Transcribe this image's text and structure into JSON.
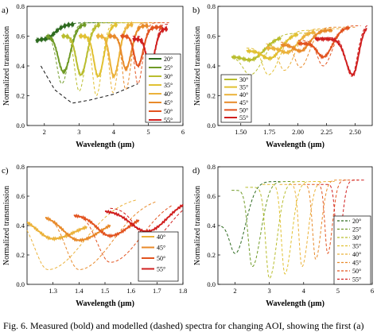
{
  "caption": "Fig. 6. Measured (bold) and modelled (dashed) spectra for changing AOI, showing the first (a)",
  "colors": {
    "20": "#2d6a1f",
    "25": "#6f9a26",
    "30": "#b9bd2e",
    "35": "#e1c132",
    "40": "#ebb23a",
    "45": "#e88a2a",
    "50": "#e2531f",
    "55": "#d01f1f"
  },
  "chart_data": [
    {
      "id": "a",
      "type": "line",
      "panel_label": "a)",
      "xlabel": "Wavelength (µm)",
      "ylabel": "Normalized transmission",
      "xlim": [
        1.5,
        6
      ],
      "ylim": [
        0,
        0.8
      ],
      "xticks": [
        2,
        3,
        4,
        5,
        6
      ],
      "xtick_labels": [
        "2",
        "3",
        "4",
        "5",
        "6"
      ],
      "yticks": [
        0.0,
        0.2,
        0.4,
        0.6,
        0.8
      ],
      "ytick_labels": [
        "0.0",
        "0.2",
        "0.4",
        "0.6",
        "0.8"
      ],
      "legend": {
        "placement": "right",
        "entries": [
          "20°",
          "25°",
          "30°",
          "35°",
          "40°",
          "45°",
          "50°",
          "55°"
        ],
        "style": "solid"
      },
      "envelope": [
        [
          1.9,
          0.4
        ],
        [
          2.3,
          0.24
        ],
        [
          2.8,
          0.15
        ],
        [
          3.3,
          0.17
        ],
        [
          4.0,
          0.21
        ],
        [
          4.7,
          0.28
        ]
      ],
      "series": [
        {
          "name": "20°",
          "solid": {
            "x0": 1.75,
            "x1": 2.85,
            "xmin": 2.0,
            "ymin": 0.58,
            "left": 0.56,
            "right": 0.68,
            "lw": 0.2,
            "rw": 0.28
          },
          "dashed": {
            "x0": 1.75,
            "x1": 4.2,
            "xmin": 1.98,
            "ymin": 0.57,
            "left": 0.55,
            "right": 0.69,
            "lw": 0.18,
            "rw": 0.35
          }
        },
        {
          "name": "25°",
          "solid": {
            "x0": 2.05,
            "x1": 3.2,
            "xmin": 2.55,
            "ymin": 0.36,
            "left": 0.6,
            "right": 0.68,
            "lw": 0.15,
            "rw": 0.2
          },
          "dashed": {
            "x0": 2.05,
            "x1": 4.4,
            "xmin": 2.5,
            "ymin": 0.28,
            "left": 0.6,
            "right": 0.69,
            "lw": 0.14,
            "rw": 0.2
          }
        },
        {
          "name": "30°",
          "solid": {
            "x0": 2.5,
            "x1": 3.6,
            "xmin": 3.05,
            "ymin": 0.34,
            "left": 0.6,
            "right": 0.68,
            "lw": 0.13,
            "rw": 0.18
          },
          "dashed": {
            "x0": 2.5,
            "x1": 4.6,
            "xmin": 3.0,
            "ymin": 0.23,
            "left": 0.6,
            "right": 0.69,
            "lw": 0.12,
            "rw": 0.18
          }
        },
        {
          "name": "35°",
          "solid": {
            "x0": 3.0,
            "x1": 4.1,
            "xmin": 3.55,
            "ymin": 0.33,
            "left": 0.6,
            "right": 0.68,
            "lw": 0.12,
            "rw": 0.17
          },
          "dashed": {
            "x0": 3.0,
            "x1": 4.9,
            "xmin": 3.5,
            "ymin": 0.2,
            "left": 0.6,
            "right": 0.69,
            "lw": 0.11,
            "rw": 0.16
          }
        },
        {
          "name": "40°",
          "solid": {
            "x0": 3.5,
            "x1": 4.55,
            "xmin": 4.0,
            "ymin": 0.33,
            "left": 0.6,
            "right": 0.68,
            "lw": 0.11,
            "rw": 0.16
          },
          "dashed": {
            "x0": 3.5,
            "x1": 5.2,
            "xmin": 3.98,
            "ymin": 0.22,
            "left": 0.6,
            "right": 0.69,
            "lw": 0.1,
            "rw": 0.15
          }
        },
        {
          "name": "45°",
          "solid": {
            "x0": 3.85,
            "x1": 5.0,
            "xmin": 4.35,
            "ymin": 0.38,
            "left": 0.6,
            "right": 0.67,
            "lw": 0.11,
            "rw": 0.16
          },
          "dashed": {
            "x0": 3.85,
            "x1": 5.4,
            "xmin": 4.35,
            "ymin": 0.24,
            "left": 0.6,
            "right": 0.69,
            "lw": 0.1,
            "rw": 0.15
          }
        },
        {
          "name": "50°",
          "solid": {
            "x0": 4.2,
            "x1": 5.4,
            "xmin": 4.7,
            "ymin": 0.4,
            "left": 0.6,
            "right": 0.66,
            "lw": 0.11,
            "rw": 0.15
          },
          "dashed": {
            "x0": 4.2,
            "x1": 5.6,
            "xmin": 4.7,
            "ymin": 0.28,
            "left": 0.6,
            "right": 0.69,
            "lw": 0.1,
            "rw": 0.14
          }
        },
        {
          "name": "55°",
          "solid": {
            "x0": 4.55,
            "x1": 5.55,
            "xmin": 5.05,
            "ymin": 0.4,
            "left": 0.58,
            "right": 0.65,
            "lw": 0.11,
            "rw": 0.14
          },
          "dashed": {
            "x0": 4.55,
            "x1": 5.6,
            "xmin": 5.05,
            "ymin": 0.33,
            "left": 0.6,
            "right": 0.68,
            "lw": 0.1,
            "rw": 0.13
          }
        }
      ]
    },
    {
      "id": "b",
      "type": "line",
      "panel_label": "b)",
      "xlabel": "Wavelength (µm)",
      "ylabel": "Normalized transmission",
      "xlim": [
        1.3,
        2.65
      ],
      "ylim": [
        0,
        0.8
      ],
      "xticks": [
        1.5,
        1.75,
        2.0,
        2.25,
        2.5
      ],
      "xtick_labels": [
        "1.50",
        "1.75",
        "2.00",
        "2.25",
        "2.50"
      ],
      "yticks": [
        0.0,
        0.2,
        0.4,
        0.6,
        0.8
      ],
      "ytick_labels": [
        "0.0",
        "0.2",
        "0.4",
        "0.6",
        "0.8"
      ],
      "legend": {
        "placement": "left",
        "entries": [
          "30°",
          "35°",
          "40°",
          "45°",
          "50°",
          "55°"
        ],
        "style": "solid"
      },
      "series": [
        {
          "name": "30°",
          "solid": {
            "x0": 1.42,
            "x1": 1.85,
            "xmin": 1.58,
            "ymin": 0.44,
            "left": 0.46,
            "right": 0.6,
            "lw": 0.06,
            "rw": 0.12
          },
          "dashed": {
            "x0": 1.42,
            "x1": 2.1,
            "xmin": 1.58,
            "ymin": 0.34,
            "left": 0.46,
            "right": 0.62,
            "lw": 0.06,
            "rw": 0.12
          }
        },
        {
          "name": "35°",
          "solid": {
            "x0": 1.55,
            "x1": 2.0,
            "xmin": 1.75,
            "ymin": 0.45,
            "left": 0.5,
            "right": 0.62,
            "lw": 0.06,
            "rw": 0.1
          },
          "dashed": {
            "x0": 1.55,
            "x1": 2.25,
            "xmin": 1.74,
            "ymin": 0.34,
            "left": 0.52,
            "right": 0.64,
            "lw": 0.05,
            "rw": 0.1
          }
        },
        {
          "name": "40°",
          "solid": {
            "x0": 1.72,
            "x1": 2.15,
            "xmin": 1.9,
            "ymin": 0.49,
            "left": 0.52,
            "right": 0.63,
            "lw": 0.05,
            "rw": 0.09
          },
          "dashed": {
            "x0": 1.72,
            "x1": 2.4,
            "xmin": 1.88,
            "ymin": 0.37,
            "left": 0.55,
            "right": 0.65,
            "lw": 0.05,
            "rw": 0.09
          }
        },
        {
          "name": "45°",
          "solid": {
            "x0": 1.85,
            "x1": 2.3,
            "xmin": 2.02,
            "ymin": 0.5,
            "left": 0.54,
            "right": 0.64,
            "lw": 0.05,
            "rw": 0.08
          },
          "dashed": {
            "x0": 1.85,
            "x1": 2.5,
            "xmin": 2.02,
            "ymin": 0.39,
            "left": 0.56,
            "right": 0.66,
            "lw": 0.05,
            "rw": 0.08
          }
        },
        {
          "name": "50°",
          "solid": {
            "x0": 2.0,
            "x1": 2.45,
            "xmin": 2.22,
            "ymin": 0.46,
            "left": 0.55,
            "right": 0.66,
            "lw": 0.05,
            "rw": 0.08
          },
          "dashed": {
            "x0": 2.0,
            "x1": 2.55,
            "xmin": 2.22,
            "ymin": 0.4,
            "left": 0.57,
            "right": 0.67,
            "lw": 0.05,
            "rw": 0.08
          }
        },
        {
          "name": "55°",
          "solid": {
            "x0": 2.15,
            "x1": 2.6,
            "xmin": 2.48,
            "ymin": 0.34,
            "left": 0.58,
            "right": 0.67,
            "lw": 0.06,
            "rw": 0.05
          },
          "dashed": {
            "x0": 2.15,
            "x1": 2.62,
            "xmin": 2.47,
            "ymin": 0.33,
            "left": 0.59,
            "right": 0.68,
            "lw": 0.05,
            "rw": 0.05
          }
        }
      ]
    },
    {
      "id": "c",
      "type": "line",
      "panel_label": "c)",
      "xlabel": "Wavelength (µm)",
      "ylabel": "Normalized transmission",
      "xlim": [
        1.2,
        1.8
      ],
      "ylim": [
        0,
        0.8
      ],
      "xticks": [
        1.3,
        1.4,
        1.5,
        1.6,
        1.7,
        1.8
      ],
      "xtick_labels": [
        "1.3",
        "1.4",
        "1.5",
        "1.6",
        "1.7",
        "1.8"
      ],
      "yticks": [
        0.0,
        0.2,
        0.4,
        0.6,
        0.8
      ],
      "ytick_labels": [
        "0.0",
        "0.2",
        "0.4",
        "0.6",
        "0.8"
      ],
      "legend": {
        "placement": "bottom-right",
        "entries": [
          "40°",
          "45°",
          "50°",
          "55°"
        ],
        "style": "solid"
      },
      "series": [
        {
          "name": "40°",
          "solid": {
            "x0": 1.2,
            "x1": 1.43,
            "xmin": 1.3,
            "ymin": 0.31,
            "left": 0.46,
            "right": 0.42,
            "lw": 0.06,
            "rw": 0.08
          },
          "dashed": {
            "x0": 1.2,
            "x1": 1.62,
            "xmin": 1.28,
            "ymin": 0.1,
            "left": 0.47,
            "right": 0.6,
            "lw": 0.05,
            "rw": 0.14
          }
        },
        {
          "name": "45°",
          "solid": {
            "x0": 1.27,
            "x1": 1.52,
            "xmin": 1.4,
            "ymin": 0.3,
            "left": 0.47,
            "right": 0.45,
            "lw": 0.06,
            "rw": 0.08
          },
          "dashed": {
            "x0": 1.3,
            "x1": 1.7,
            "xmin": 1.4,
            "ymin": 0.1,
            "left": 0.48,
            "right": 0.6,
            "lw": 0.05,
            "rw": 0.13
          }
        },
        {
          "name": "50°",
          "solid": {
            "x0": 1.38,
            "x1": 1.63,
            "xmin": 1.52,
            "ymin": 0.33,
            "left": 0.47,
            "right": 0.48,
            "lw": 0.05,
            "rw": 0.07
          },
          "dashed": {
            "x0": 1.42,
            "x1": 1.76,
            "xmin": 1.52,
            "ymin": 0.15,
            "left": 0.49,
            "right": 0.6,
            "lw": 0.05,
            "rw": 0.12
          }
        },
        {
          "name": "55°",
          "solid": {
            "x0": 1.5,
            "x1": 1.8,
            "xmin": 1.66,
            "ymin": 0.36,
            "left": 0.5,
            "right": 0.59,
            "lw": 0.06,
            "rw": 0.08
          },
          "dashed": {
            "x0": 1.52,
            "x1": 1.8,
            "xmin": 1.67,
            "ymin": 0.3,
            "left": 0.52,
            "right": 0.58,
            "lw": 0.05,
            "rw": 0.08
          }
        }
      ]
    },
    {
      "id": "d",
      "type": "line",
      "panel_label": "d)",
      "xlabel": "Wavelength (µm)",
      "ylabel": "Normalized transmission",
      "xlim": [
        1.5,
        6
      ],
      "ylim": [
        0,
        0.8
      ],
      "xticks": [
        2,
        3,
        4,
        5,
        6
      ],
      "xtick_labels": [
        "2",
        "3",
        "4",
        "5",
        "6"
      ],
      "yticks": [
        0.0,
        0.2,
        0.4,
        0.6,
        0.8
      ],
      "ytick_labels": [
        "0.0",
        "0.2",
        "0.4",
        "0.6",
        "0.8"
      ],
      "legend": {
        "placement": "right",
        "entries": [
          "20°",
          "25°",
          "30°",
          "35°",
          "40°",
          "45°",
          "50°",
          "55°"
        ],
        "style": "dashed"
      },
      "series": [
        {
          "name": "20°",
          "dashed": {
            "x0": 1.6,
            "x1": 3.3,
            "xmin": 2.0,
            "ymin": 0.21,
            "left": 0.4,
            "right": 0.7,
            "lw": 0.15,
            "rw": 0.3
          }
        },
        {
          "name": "25°",
          "dashed": {
            "x0": 1.9,
            "x1": 3.7,
            "xmin": 2.5,
            "ymin": 0.12,
            "left": 0.64,
            "right": 0.7,
            "lw": 0.12,
            "rw": 0.25
          }
        },
        {
          "name": "30°",
          "dashed": {
            "x0": 2.3,
            "x1": 4.1,
            "xmin": 3.0,
            "ymin": 0.04,
            "left": 0.66,
            "right": 0.7,
            "lw": 0.11,
            "rw": 0.22
          }
        },
        {
          "name": "35°",
          "dashed": {
            "x0": 2.8,
            "x1": 4.5,
            "xmin": 3.45,
            "ymin": 0.07,
            "left": 0.68,
            "right": 0.7,
            "lw": 0.1,
            "rw": 0.2
          }
        },
        {
          "name": "40°",
          "dashed": {
            "x0": 3.3,
            "x1": 4.9,
            "xmin": 3.95,
            "ymin": 0.12,
            "left": 0.68,
            "right": 0.7,
            "lw": 0.09,
            "rw": 0.18
          }
        },
        {
          "name": "45°",
          "dashed": {
            "x0": 3.7,
            "x1": 5.3,
            "xmin": 4.35,
            "ymin": 0.17,
            "left": 0.68,
            "right": 0.71,
            "lw": 0.09,
            "rw": 0.16
          }
        },
        {
          "name": "50°",
          "dashed": {
            "x0": 4.1,
            "x1": 5.6,
            "xmin": 4.7,
            "ymin": 0.21,
            "left": 0.68,
            "right": 0.71,
            "lw": 0.08,
            "rw": 0.14
          }
        },
        {
          "name": "55°",
          "dashed": {
            "x0": 4.5,
            "x1": 5.8,
            "xmin": 5.0,
            "ymin": 0.28,
            "left": 0.68,
            "right": 0.71,
            "lw": 0.08,
            "rw": 0.13
          }
        }
      ]
    }
  ]
}
